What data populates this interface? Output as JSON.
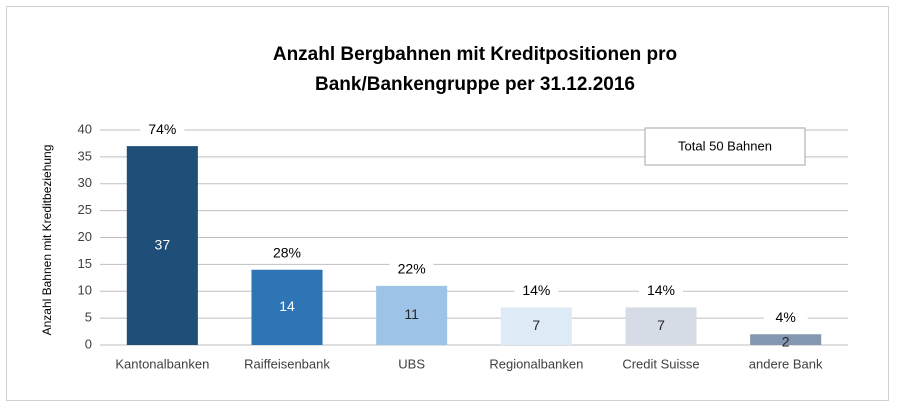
{
  "chart_data": {
    "type": "bar",
    "title": "Anzahl Bergbahnen mit Kreditpositionen pro Bank/Bankengruppe per 31.12.2016",
    "y_label": "Anzahl Bahnen mit Kreditbeziehung",
    "annotation": "Total 50 Bahnen",
    "categories": [
      "Kantonalbanken",
      "Raiffeisenbank",
      "UBS",
      "Regionalbanken",
      "Credit Suisse",
      "andere Bank"
    ],
    "values": [
      37,
      14,
      11,
      7,
      7,
      2
    ],
    "percent_labels": [
      "74%",
      "28%",
      "22%",
      "14%",
      "14%",
      "4%"
    ],
    "colors": [
      "#1f4e79",
      "#2e75b6",
      "#9dc3e6",
      "#deebf7",
      "#d6dce5",
      "#8497b0"
    ],
    "value_label_colors": [
      "#ffffff",
      "#ffffff",
      "#262626",
      "#262626",
      "#262626",
      "#262626"
    ],
    "ylim": [
      0,
      40
    ],
    "yticks": [
      0,
      5,
      10,
      15,
      20,
      25,
      30,
      35,
      40
    ],
    "grid": true
  }
}
